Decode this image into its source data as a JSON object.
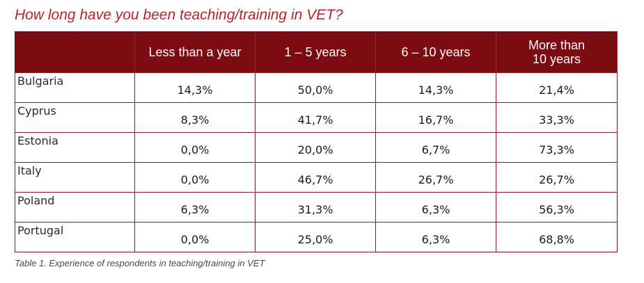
{
  "title": "How long have you been teaching/training in VET?",
  "caption": "Table 1. Experience of respondents in teaching/training in VET",
  "colors": {
    "title": "#c0202a",
    "header_bg": "#7d0c12",
    "header_text": "#ffffff",
    "border": "#8a1a20"
  },
  "table": {
    "headers": [
      "",
      "Less than a year",
      "1 – 5 years",
      "6 – 10 years",
      "More than\n10 years"
    ],
    "rows": [
      {
        "country": "Bulgaria",
        "values": [
          "14,3%",
          "50,0%",
          "14,3%",
          "21,4%"
        ]
      },
      {
        "country": "Cyprus",
        "values": [
          "8,3%",
          "41,7%",
          "16,7%",
          "33,3%"
        ]
      },
      {
        "country": "Estonia",
        "values": [
          "0,0%",
          "20,0%",
          "6,7%",
          "73,3%"
        ]
      },
      {
        "country": "Italy",
        "values": [
          "0,0%",
          "46,7%",
          "26,7%",
          "26,7%"
        ]
      },
      {
        "country": "Poland",
        "values": [
          "6,3%",
          "31,3%",
          "6,3%",
          "56,3%"
        ]
      },
      {
        "country": "Portugal",
        "values": [
          "0,0%",
          "25,0%",
          "6,3%",
          "68,8%"
        ]
      }
    ]
  }
}
